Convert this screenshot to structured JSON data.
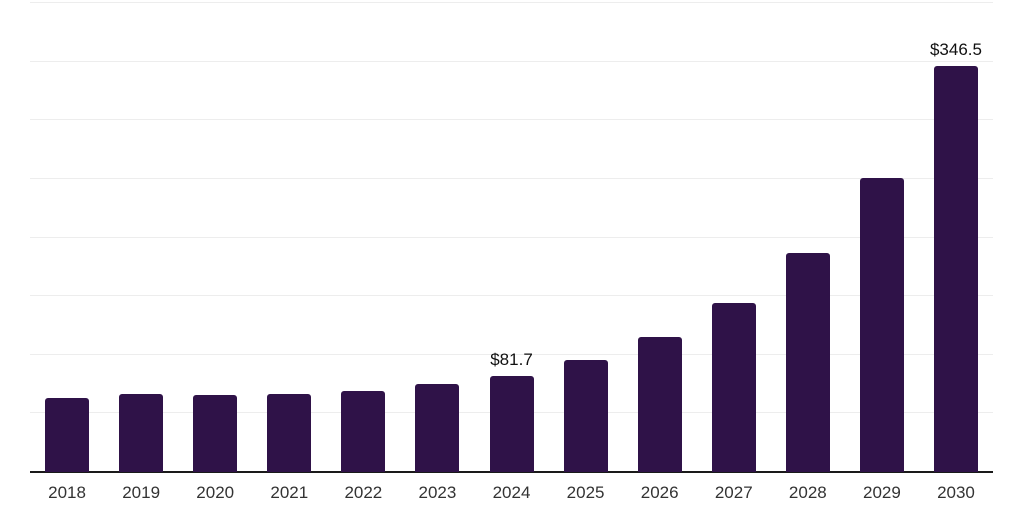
{
  "chart_data": {
    "type": "bar",
    "title": "",
    "xlabel": "",
    "ylabel": "",
    "categories": [
      "2018",
      "2019",
      "2020",
      "2021",
      "2022",
      "2023",
      "2024",
      "2025",
      "2026",
      "2027",
      "2028",
      "2029",
      "2030"
    ],
    "values": [
      62.8,
      66.6,
      66.0,
      66.8,
      69.1,
      75.0,
      81.7,
      95.8,
      115.3,
      144.0,
      186.9,
      250.6,
      346.5
    ],
    "data_labels": [
      "",
      "",
      "",
      "",
      "",
      "",
      "$81.7",
      "",
      "",
      "",
      "",
      "",
      "$346.5"
    ],
    "unit_prefix": "$",
    "ylim": [
      0,
      400
    ],
    "gridline_interval": 50,
    "grid": true,
    "legend": "none",
    "y_tick_labels_visible": false,
    "colors": {
      "bar": "#2f1248",
      "gridline": "#ededed",
      "axis": "#1a1a1a",
      "tick_label": "#333333",
      "data_label": "#111111",
      "background": "#ffffff"
    }
  }
}
